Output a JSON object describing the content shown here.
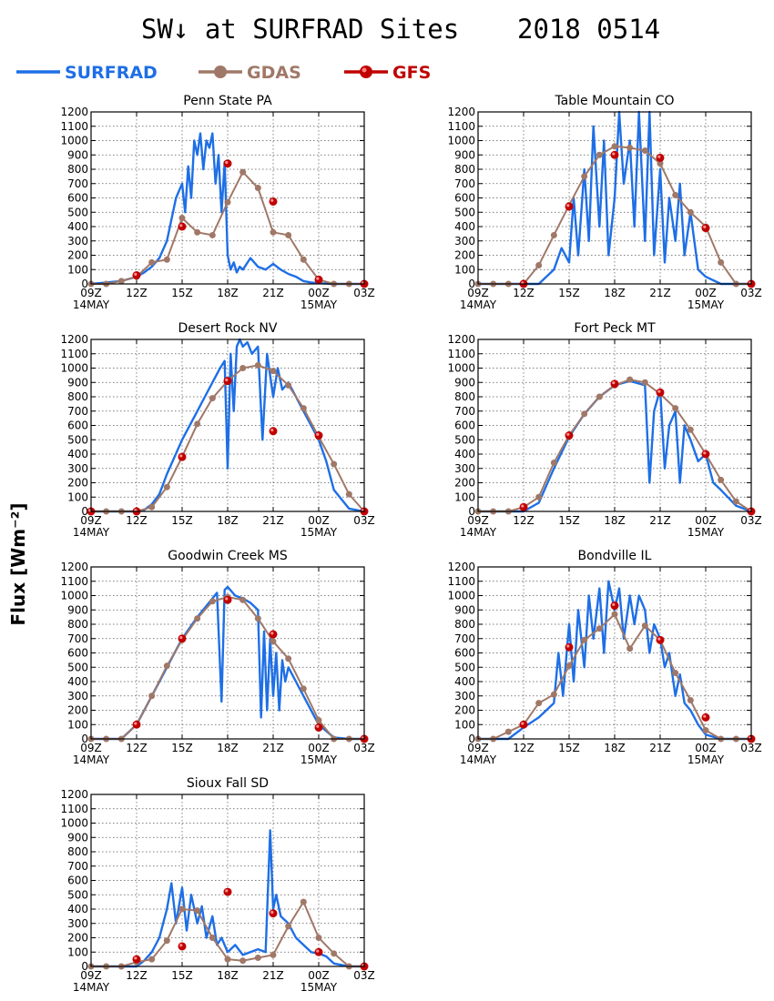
{
  "title": "SW↓ at SURFRAD Sites",
  "date": "2018 0514",
  "ylabel": "Flux [Wm⁻²]",
  "legend": [
    {
      "name": "SURFRAD",
      "color": "#1e6fe6",
      "marker": "none"
    },
    {
      "name": "GDAS",
      "color": "#a07868",
      "marker": "circle"
    },
    {
      "name": "GFS",
      "color": "#c00000",
      "marker": "circle"
    }
  ],
  "axis": {
    "xticks": [
      "09Z",
      "12Z",
      "15Z",
      "18Z",
      "21Z",
      "00Z",
      "03Z"
    ],
    "xsub": [
      "14MAY",
      "15MAY"
    ],
    "yticks": [
      "0",
      "100",
      "200",
      "300",
      "400",
      "500",
      "600",
      "700",
      "800",
      "900",
      "1000",
      "1100",
      "1200"
    ],
    "ylim": [
      0,
      1200
    ],
    "xlim_hours": [
      9,
      27
    ]
  },
  "chart_data": [
    {
      "type": "line",
      "title": "Penn State PA",
      "series": [
        {
          "name": "SURFRAD",
          "x": [
            9,
            10,
            11,
            12,
            12.5,
            13,
            13.5,
            14,
            14.3,
            14.6,
            15,
            15.2,
            15.4,
            15.6,
            15.8,
            16,
            16.2,
            16.4,
            16.6,
            16.8,
            17,
            17.2,
            17.4,
            17.6,
            17.8,
            18,
            18.2,
            18.4,
            18.6,
            18.8,
            19,
            19.5,
            20,
            20.5,
            21,
            21.5,
            22,
            22.5,
            23,
            23.5,
            24,
            25,
            26,
            27
          ],
          "y": [
            0,
            10,
            20,
            50,
            80,
            120,
            180,
            300,
            450,
            600,
            700,
            500,
            820,
            600,
            1000,
            900,
            1050,
            800,
            1000,
            950,
            1050,
            700,
            900,
            500,
            850,
            200,
            100,
            150,
            80,
            120,
            100,
            180,
            120,
            100,
            140,
            100,
            70,
            50,
            20,
            10,
            5,
            0,
            0,
            0
          ]
        },
        {
          "name": "GDAS",
          "x": [
            9,
            10,
            11,
            12,
            13,
            14,
            15,
            16,
            17,
            18,
            19,
            20,
            21,
            22,
            23,
            24,
            25,
            26,
            27
          ],
          "y": [
            0,
            0,
            20,
            50,
            150,
            170,
            460,
            360,
            340,
            570,
            780,
            670,
            360,
            340,
            170,
            30,
            0,
            0,
            0
          ]
        },
        {
          "name": "GFS",
          "x": [
            12,
            15,
            18,
            21,
            24,
            27
          ],
          "y": [
            60,
            400,
            840,
            575,
            30,
            0
          ]
        }
      ]
    },
    {
      "type": "line",
      "title": "Table Mountain CO",
      "series": [
        {
          "name": "SURFRAD",
          "x": [
            9,
            10,
            11,
            12,
            13,
            14,
            14.5,
            15,
            15.3,
            15.6,
            16,
            16.3,
            16.6,
            17,
            17.3,
            17.6,
            18,
            18.3,
            18.6,
            19,
            19.3,
            19.6,
            20,
            20.3,
            20.6,
            21,
            21.3,
            21.6,
            22,
            22.3,
            22.6,
            23,
            23.5,
            24,
            25,
            26,
            27
          ],
          "y": [
            0,
            0,
            0,
            0,
            0,
            100,
            250,
            150,
            600,
            200,
            800,
            300,
            1100,
            400,
            1000,
            200,
            600,
            1200,
            700,
            1000,
            400,
            1200,
            300,
            1200,
            200,
            800,
            150,
            600,
            300,
            700,
            200,
            500,
            100,
            50,
            0,
            0,
            0
          ]
        },
        {
          "name": "GDAS",
          "x": [
            9,
            10,
            11,
            12,
            13,
            14,
            15,
            16,
            17,
            18,
            19,
            20,
            21,
            22,
            23,
            24,
            25,
            26,
            27
          ],
          "y": [
            0,
            0,
            0,
            0,
            130,
            340,
            550,
            750,
            900,
            960,
            950,
            930,
            840,
            620,
            500,
            400,
            150,
            0,
            0
          ]
        },
        {
          "name": "GFS",
          "x": [
            12,
            15,
            18,
            21,
            24,
            27
          ],
          "y": [
            0,
            540,
            900,
            880,
            390,
            0
          ]
        }
      ]
    },
    {
      "type": "line",
      "title": "Desert Rock NV",
      "series": [
        {
          "name": "SURFRAD",
          "x": [
            9,
            10,
            11,
            12,
            12.5,
            13,
            13.5,
            14,
            15,
            16,
            16.5,
            17,
            17.5,
            17.8,
            18,
            18.2,
            18.4,
            18.6,
            18.8,
            19,
            19.3,
            19.6,
            20,
            20.3,
            20.6,
            21,
            21.3,
            21.6,
            22,
            22.5,
            23,
            23.5,
            24,
            24.5,
            25,
            26,
            27
          ],
          "y": [
            0,
            0,
            0,
            0,
            10,
            50,
            120,
            260,
            500,
            700,
            800,
            900,
            1000,
            1050,
            300,
            1100,
            700,
            1150,
            1200,
            1150,
            1180,
            1100,
            1150,
            500,
            1100,
            800,
            1000,
            850,
            900,
            800,
            700,
            600,
            500,
            350,
            150,
            20,
            0
          ]
        },
        {
          "name": "GDAS",
          "x": [
            9,
            10,
            11,
            12,
            13,
            14,
            15,
            16,
            17,
            18,
            19,
            20,
            21,
            22,
            23,
            24,
            25,
            26,
            27
          ],
          "y": [
            0,
            0,
            0,
            0,
            30,
            170,
            380,
            610,
            790,
            910,
            1000,
            1020,
            980,
            880,
            720,
            520,
            330,
            120,
            0
          ]
        },
        {
          "name": "GFS",
          "x": [
            9,
            12,
            15,
            18,
            21,
            24,
            27
          ],
          "y": [
            0,
            0,
            380,
            910,
            560,
            530,
            0
          ]
        }
      ]
    },
    {
      "type": "line",
      "title": "Fort Peck MT",
      "series": [
        {
          "name": "SURFRAD",
          "x": [
            9,
            10,
            11,
            12,
            13,
            14,
            15,
            16,
            17,
            18,
            19,
            20,
            20.3,
            20.6,
            21,
            21.3,
            21.6,
            22,
            22.3,
            22.6,
            23,
            23.5,
            24,
            24.5,
            25,
            26,
            27
          ],
          "y": [
            0,
            0,
            0,
            0,
            60,
            300,
            520,
            680,
            800,
            880,
            910,
            880,
            200,
            700,
            850,
            300,
            600,
            700,
            200,
            600,
            500,
            350,
            400,
            200,
            150,
            40,
            0
          ]
        },
        {
          "name": "GDAS",
          "x": [
            9,
            10,
            11,
            12,
            13,
            14,
            15,
            16,
            17,
            18,
            19,
            20,
            21,
            22,
            23,
            24,
            25,
            26,
            27
          ],
          "y": [
            0,
            0,
            0,
            30,
            100,
            340,
            530,
            680,
            800,
            880,
            920,
            900,
            820,
            720,
            570,
            400,
            220,
            70,
            0
          ]
        },
        {
          "name": "GFS",
          "x": [
            12,
            15,
            18,
            21,
            24,
            27
          ],
          "y": [
            30,
            530,
            890,
            830,
            400,
            0
          ]
        }
      ]
    },
    {
      "type": "line",
      "title": "Goodwin Creek MS",
      "series": [
        {
          "name": "SURFRAD",
          "x": [
            9,
            10,
            11,
            12,
            13,
            14,
            15,
            16,
            17,
            17.3,
            17.6,
            17.8,
            18,
            18.5,
            19,
            19.5,
            20,
            20.2,
            20.4,
            20.6,
            20.8,
            21,
            21.2,
            21.4,
            21.6,
            21.8,
            22,
            23,
            24,
            25,
            26,
            27
          ],
          "y": [
            0,
            0,
            0,
            100,
            300,
            500,
            700,
            850,
            980,
            1020,
            260,
            1040,
            1060,
            1000,
            980,
            950,
            900,
            150,
            750,
            200,
            700,
            300,
            600,
            200,
            550,
            400,
            500,
            300,
            100,
            10,
            0,
            0
          ]
        },
        {
          "name": "GDAS",
          "x": [
            9,
            10,
            11,
            12,
            13,
            14,
            15,
            16,
            17,
            18,
            19,
            20,
            21,
            22,
            23,
            24,
            25,
            26,
            27
          ],
          "y": [
            0,
            0,
            0,
            100,
            300,
            510,
            690,
            840,
            960,
            990,
            970,
            840,
            680,
            560,
            350,
            130,
            0,
            0,
            0
          ]
        },
        {
          "name": "GFS",
          "x": [
            12,
            15,
            18,
            21,
            24,
            27
          ],
          "y": [
            100,
            700,
            970,
            730,
            80,
            0
          ]
        }
      ]
    },
    {
      "type": "line",
      "title": "Bondville IL",
      "series": [
        {
          "name": "SURFRAD",
          "x": [
            9,
            10,
            11,
            12,
            13,
            14,
            14.3,
            14.6,
            15,
            15.3,
            15.6,
            16,
            16.3,
            16.6,
            17,
            17.3,
            17.6,
            18,
            18.3,
            18.6,
            19,
            19.3,
            19.6,
            20,
            20.3,
            20.6,
            21,
            21.3,
            21.6,
            22,
            22.3,
            22.6,
            23,
            23.5,
            24,
            25,
            26,
            27
          ],
          "y": [
            0,
            0,
            0,
            80,
            150,
            250,
            600,
            300,
            800,
            400,
            900,
            500,
            1000,
            700,
            1050,
            600,
            1100,
            900,
            1050,
            700,
            1000,
            800,
            1000,
            900,
            600,
            800,
            700,
            500,
            600,
            300,
            450,
            250,
            200,
            100,
            30,
            0,
            0,
            0
          ]
        },
        {
          "name": "GDAS",
          "x": [
            9,
            10,
            11,
            12,
            13,
            14,
            15,
            16,
            17,
            18,
            19,
            20,
            21,
            22,
            23,
            24,
            25,
            26,
            27
          ],
          "y": [
            0,
            0,
            50,
            100,
            250,
            310,
            510,
            690,
            770,
            870,
            630,
            790,
            690,
            460,
            270,
            60,
            0,
            0,
            0
          ]
        },
        {
          "name": "GFS",
          "x": [
            12,
            15,
            18,
            21,
            24,
            27
          ],
          "y": [
            100,
            640,
            930,
            690,
            150,
            0
          ]
        }
      ]
    },
    {
      "type": "line",
      "title": "Sioux Fall SD",
      "series": [
        {
          "name": "SURFRAD",
          "x": [
            9,
            10,
            11,
            12,
            12.5,
            13,
            13.5,
            14,
            14.3,
            14.6,
            15,
            15.3,
            15.6,
            16,
            16.3,
            16.6,
            17,
            17.3,
            17.6,
            18,
            18.5,
            19,
            19.5,
            20,
            20.5,
            20.8,
            21,
            21.2,
            21.5,
            22,
            22.5,
            23,
            23.5,
            24,
            24.5,
            25,
            26,
            27
          ],
          "y": [
            0,
            0,
            0,
            0,
            40,
            100,
            200,
            400,
            580,
            300,
            550,
            250,
            500,
            300,
            420,
            200,
            350,
            150,
            200,
            100,
            150,
            80,
            100,
            120,
            100,
            950,
            400,
            500,
            350,
            300,
            200,
            150,
            100,
            90,
            70,
            20,
            0,
            0
          ]
        },
        {
          "name": "GDAS",
          "x": [
            9,
            10,
            11,
            12,
            13,
            14,
            15,
            16,
            17,
            18,
            19,
            20,
            21,
            22,
            23,
            24,
            25,
            26,
            27
          ],
          "y": [
            0,
            0,
            0,
            30,
            50,
            180,
            400,
            390,
            200,
            50,
            40,
            60,
            80,
            280,
            450,
            200,
            90,
            0,
            0
          ]
        },
        {
          "name": "GFS",
          "x": [
            12,
            15,
            18,
            21,
            24,
            27
          ],
          "y": [
            50,
            140,
            520,
            370,
            100,
            0
          ]
        }
      ]
    }
  ]
}
